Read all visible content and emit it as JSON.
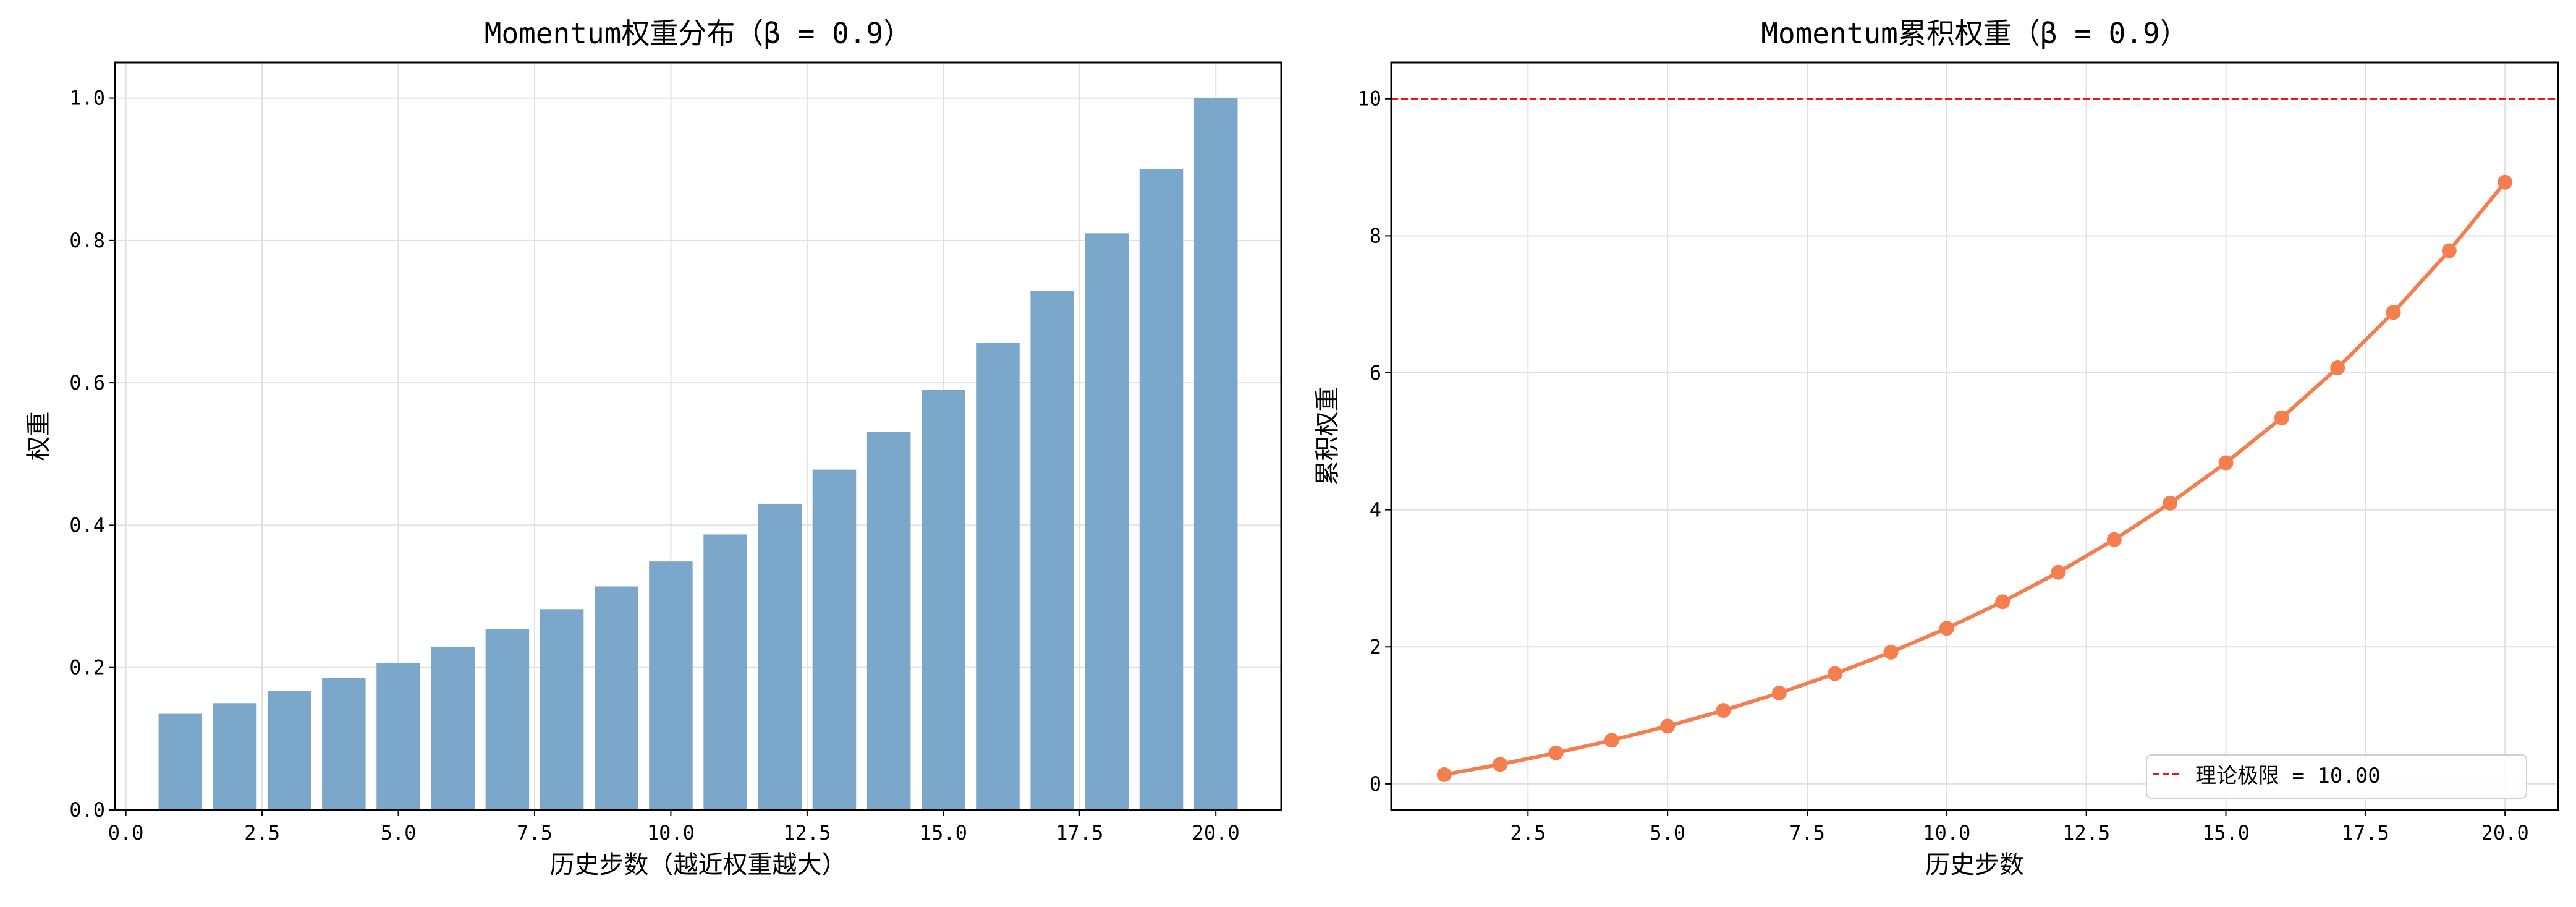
{
  "chart_data": [
    {
      "type": "bar",
      "title": "Momentum权重分布（β = 0.9）",
      "xlabel": "历史步数（越近权重越大）",
      "ylabel": "权重",
      "x": [
        1,
        2,
        3,
        4,
        5,
        6,
        7,
        8,
        9,
        10,
        11,
        12,
        13,
        14,
        15,
        16,
        17,
        18,
        19,
        20
      ],
      "values": [
        0.135,
        0.15,
        0.167,
        0.185,
        0.206,
        0.229,
        0.254,
        0.282,
        0.314,
        0.349,
        0.387,
        0.43,
        0.478,
        0.531,
        0.59,
        0.656,
        0.729,
        0.81,
        0.9,
        1.0
      ],
      "xlim": [
        -0.2,
        21.2
      ],
      "ylim": [
        0,
        1.05
      ],
      "xticks": [
        "0.0",
        "2.5",
        "5.0",
        "7.5",
        "10.0",
        "12.5",
        "15.0",
        "17.5",
        "20.0"
      ],
      "yticks": [
        "0.0",
        "0.2",
        "0.4",
        "0.6",
        "0.8",
        "1.0"
      ],
      "grid": true,
      "color": "#7ba7cb"
    },
    {
      "type": "line",
      "title": "Momentum累积权重（β = 0.9）",
      "xlabel": "历史步数",
      "ylabel": "累积权重",
      "x": [
        1,
        2,
        3,
        4,
        5,
        6,
        7,
        8,
        9,
        10,
        11,
        12,
        13,
        14,
        15,
        16,
        17,
        18,
        19,
        20
      ],
      "values": [
        0.135,
        0.285,
        0.452,
        0.637,
        0.843,
        1.072,
        1.326,
        1.608,
        1.922,
        2.271,
        2.658,
        3.088,
        3.566,
        4.097,
        4.687,
        5.343,
        6.072,
        6.882,
        7.782,
        8.782
      ],
      "xlim": [
        0.05,
        20.95
      ],
      "ylim": [
        -0.38,
        10.53
      ],
      "xticks": [
        "2.5",
        "5.0",
        "7.5",
        "10.0",
        "12.5",
        "15.0",
        "17.5",
        "20.0"
      ],
      "yticks": [
        "0",
        "2",
        "4",
        "6",
        "8",
        "10"
      ],
      "grid": true,
      "color": "#f47e4e",
      "reference_line": {
        "y": 10.0,
        "label": "理论极限 = 10.00",
        "color": "#e31a1c",
        "style": "dashed"
      },
      "legend": "bottom-right"
    }
  ]
}
